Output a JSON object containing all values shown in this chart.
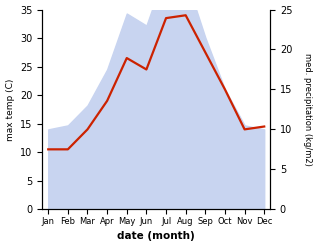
{
  "months": [
    "Jan",
    "Feb",
    "Mar",
    "Apr",
    "May",
    "Jun",
    "Jul",
    "Aug",
    "Sep",
    "Oct",
    "Nov",
    "Dec"
  ],
  "month_positions": [
    0,
    1,
    2,
    3,
    4,
    5,
    6,
    7,
    8,
    9,
    10,
    11
  ],
  "temp_max": [
    10.5,
    10.5,
    14.0,
    19.0,
    26.5,
    24.5,
    33.5,
    34.0,
    27.5,
    21.0,
    14.0,
    14.5
  ],
  "precip": [
    10.0,
    10.5,
    13.0,
    17.5,
    24.5,
    23.0,
    30.0,
    29.0,
    21.5,
    15.0,
    10.5,
    10.0
  ],
  "temp_color": "#cc2200",
  "precip_fill_color": "#c8d4f0",
  "temp_ylim": [
    0,
    35
  ],
  "precip_ylim": [
    0,
    25
  ],
  "temp_yticks": [
    0,
    5,
    10,
    15,
    20,
    25,
    30,
    35
  ],
  "precip_yticks": [
    0,
    5,
    10,
    15,
    20,
    25
  ],
  "xlabel": "date (month)",
  "ylabel_left": "max temp (C)",
  "ylabel_right": "med. precipitation (kg/m2)",
  "background_color": "#ffffff",
  "line_width": 1.6
}
